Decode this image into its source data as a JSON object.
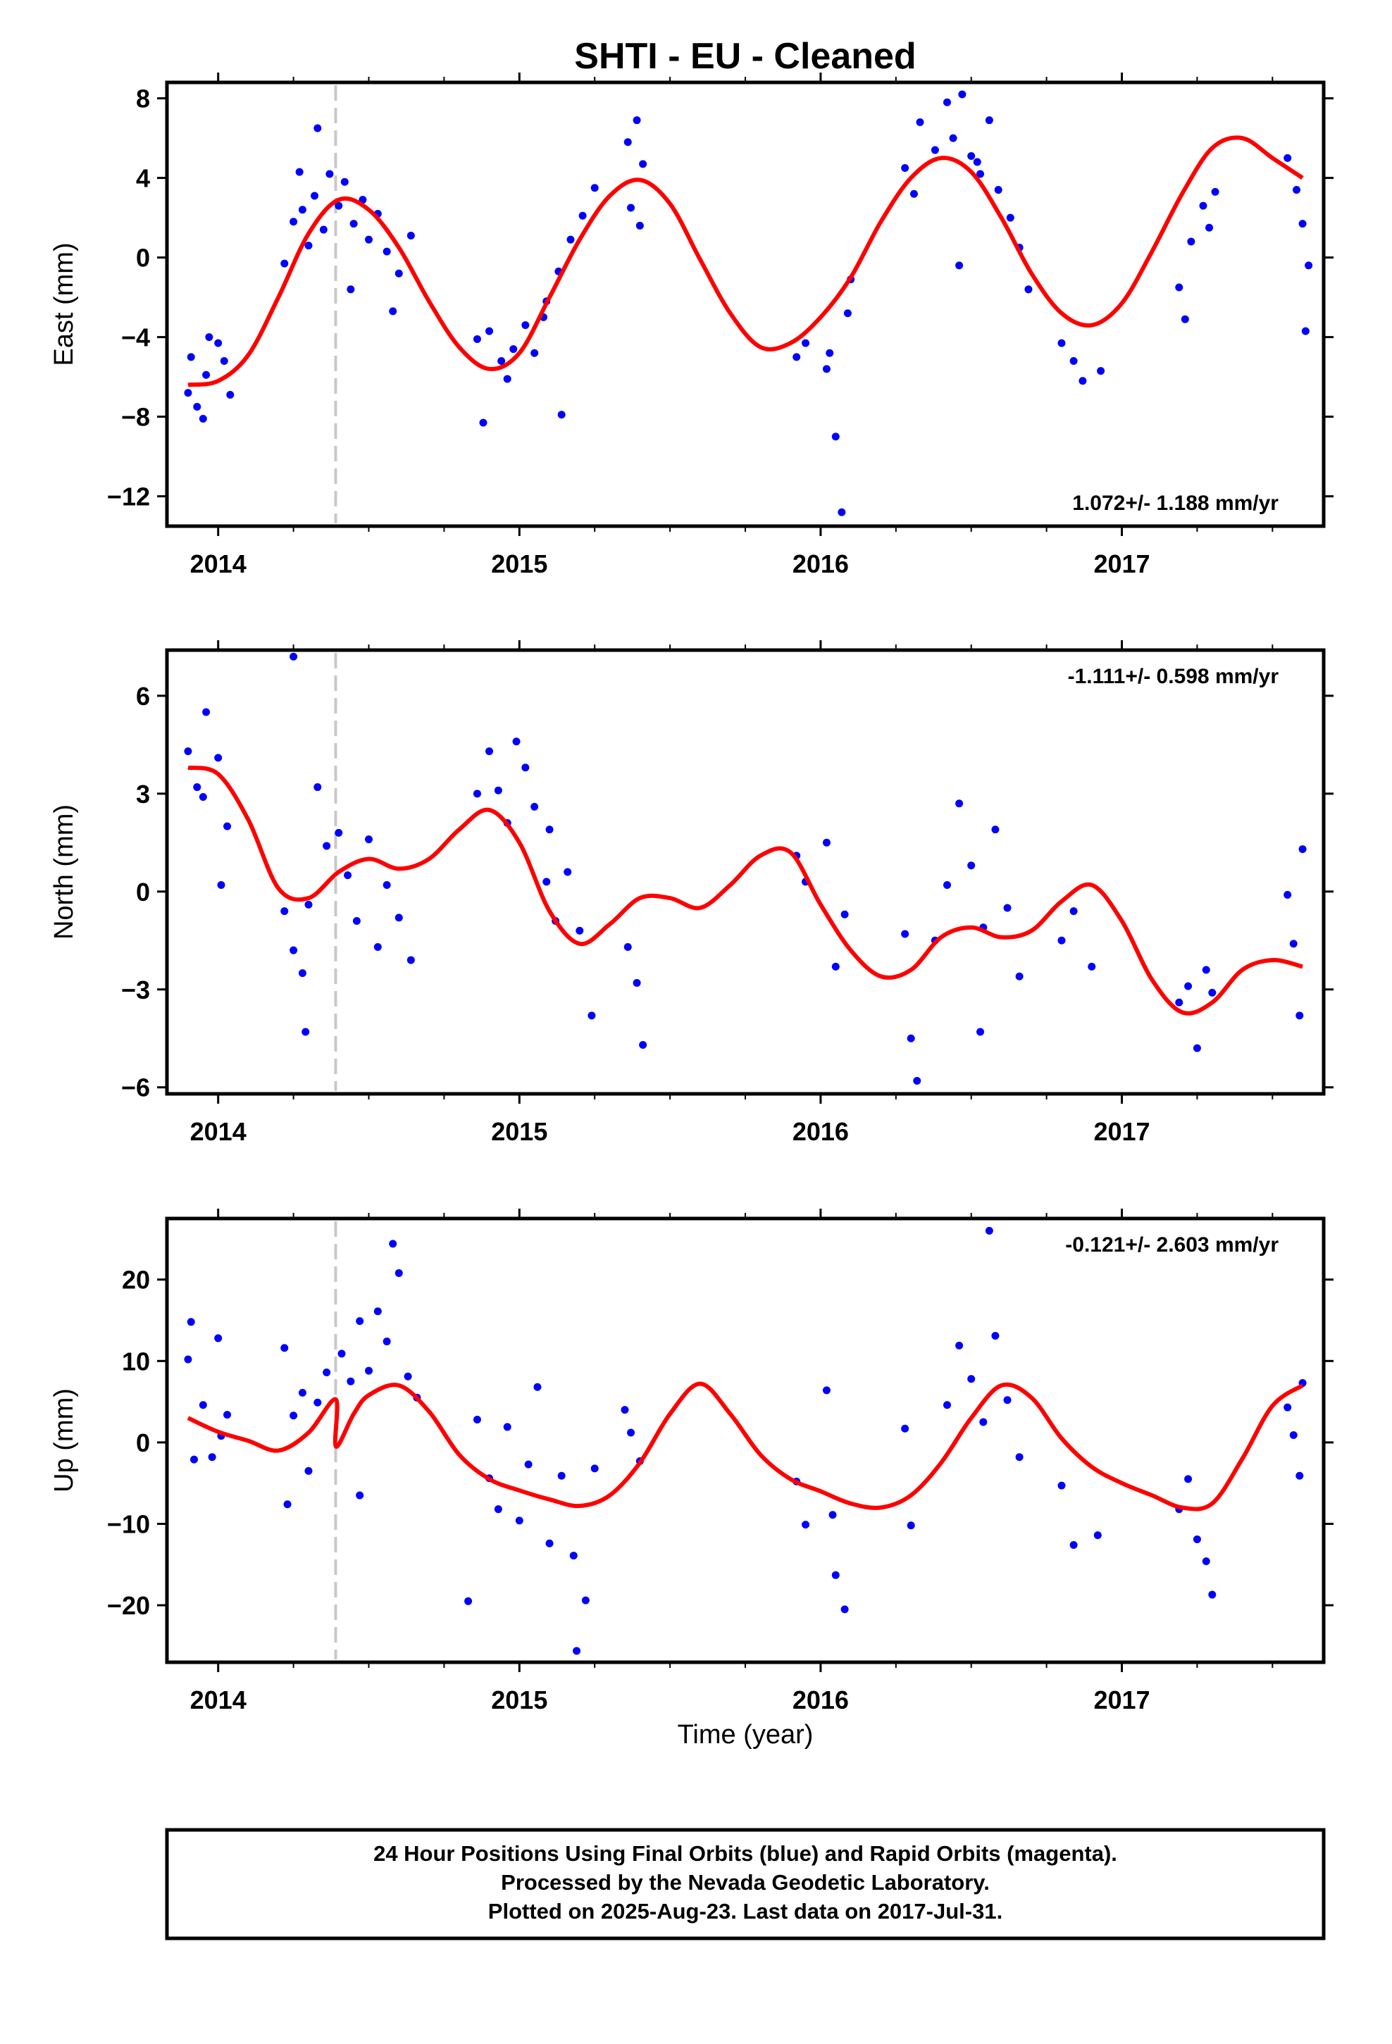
{
  "title": "SHTI  - EU - Cleaned",
  "xlabel": "Time (year)",
  "footer": {
    "lines": [
      "24 Hour Positions Using Final Orbits (blue) and Rapid Orbits (magenta).",
      "Processed by the Nevada Geodetic Laboratory.",
      "Plotted on 2025-Aug-23. Last data on 2017-Jul-31."
    ]
  },
  "colors": {
    "points": "#0000ff",
    "fit": "#ff0000",
    "break_line": "#c8c8c8",
    "frame": "#000000"
  },
  "chart_data": [
    {
      "type": "scatter",
      "name": "east",
      "ylabel": "East (mm)",
      "rate_text": "1.072+/- 1.188 mm/yr",
      "rate_position": "bottom-right",
      "xlim": [
        2013.83,
        2017.67
      ],
      "ylim": [
        -13.5,
        8.8
      ],
      "xticks": [
        2014,
        2015,
        2016,
        2017
      ],
      "yticks": [
        8,
        4,
        0,
        -4,
        -8,
        -12
      ],
      "equipment_break": 2014.39,
      "fit": {
        "x": [
          2013.9,
          2014.0,
          2014.1,
          2014.2,
          2014.3,
          2014.4,
          2014.5,
          2014.6,
          2014.7,
          2014.8,
          2014.9,
          2015.0,
          2015.1,
          2015.2,
          2015.3,
          2015.4,
          2015.5,
          2015.6,
          2015.7,
          2015.8,
          2015.9,
          2016.0,
          2016.1,
          2016.2,
          2016.3,
          2016.4,
          2016.5,
          2016.6,
          2016.7,
          2016.8,
          2016.9,
          2017.0,
          2017.1,
          2017.2,
          2017.3,
          2017.4,
          2017.5,
          2017.6
        ],
        "y": [
          -6.4,
          -6.2,
          -4.9,
          -2.0,
          1.2,
          2.9,
          2.4,
          0.5,
          -2.2,
          -4.5,
          -5.6,
          -4.8,
          -2.0,
          0.9,
          3.1,
          3.9,
          2.7,
          -0.1,
          -2.8,
          -4.5,
          -4.3,
          -3.0,
          -1.0,
          1.8,
          4.0,
          5.0,
          4.3,
          2.0,
          -0.8,
          -2.8,
          -3.4,
          -2.3,
          0.3,
          3.2,
          5.5,
          6.0,
          5.0,
          4.0
        ]
      },
      "series": [
        {
          "name": "Final Orbits",
          "x": [
            2013.9,
            2013.93,
            2013.96,
            2014.0,
            2014.02,
            2013.95,
            2013.91,
            2014.04,
            2013.97,
            2014.22,
            2014.25,
            2014.28,
            2014.3,
            2014.32,
            2014.35,
            2014.37,
            2014.4,
            2014.42,
            2014.45,
            2014.48,
            2014.5,
            2014.53,
            2014.56,
            2014.6,
            2014.64,
            2014.33,
            2014.27,
            2014.44,
            2014.58,
            2014.86,
            2014.9,
            2014.94,
            2014.98,
            2015.02,
            2015.05,
            2015.08,
            2014.88,
            2014.96,
            2015.09,
            2015.13,
            2015.17,
            2015.21,
            2015.25,
            2015.14,
            2015.36,
            2015.39,
            2015.41,
            2015.37,
            2015.4,
            2015.92,
            2015.95,
            2016.02,
            2016.05,
            2016.07,
            2016.09,
            2016.1,
            2016.03,
            2016.28,
            2016.31,
            2016.33,
            2016.38,
            2016.42,
            2016.44,
            2016.47,
            2016.5,
            2016.53,
            2016.56,
            2016.59,
            2016.63,
            2016.66,
            2016.69,
            2016.46,
            2016.52,
            2016.8,
            2016.84,
            2016.87,
            2016.93,
            2017.19,
            2017.21,
            2017.23,
            2017.27,
            2017.29,
            2017.31,
            2017.55,
            2017.58,
            2017.6,
            2017.62,
            2017.61
          ],
          "y": [
            -6.8,
            -7.5,
            -5.9,
            -4.3,
            -5.2,
            -8.1,
            -5.0,
            -6.9,
            -4.0,
            -0.3,
            1.8,
            2.4,
            0.6,
            3.1,
            1.4,
            4.2,
            2.6,
            3.8,
            1.7,
            2.9,
            0.9,
            2.2,
            0.3,
            -0.8,
            1.1,
            6.5,
            4.3,
            -1.6,
            -2.7,
            -4.1,
            -3.7,
            -5.2,
            -4.6,
            -3.4,
            -4.8,
            -3.0,
            -8.3,
            -6.1,
            -2.2,
            -0.7,
            0.9,
            2.1,
            3.5,
            -7.9,
            5.8,
            6.9,
            4.7,
            2.5,
            1.6,
            -5.0,
            -4.3,
            -5.6,
            -9.0,
            -12.8,
            -2.8,
            -1.1,
            -4.8,
            4.5,
            3.2,
            6.8,
            5.4,
            7.8,
            6.0,
            8.2,
            5.1,
            4.2,
            6.9,
            3.4,
            2.0,
            0.5,
            -1.6,
            -0.4,
            4.8,
            -4.3,
            -5.2,
            -6.2,
            -5.7,
            -1.5,
            -3.1,
            0.8,
            2.6,
            1.5,
            3.3,
            5.0,
            3.4,
            1.7,
            -0.4,
            -3.7
          ]
        }
      ]
    },
    {
      "type": "scatter",
      "name": "north",
      "ylabel": "North (mm)",
      "rate_text": "-1.111+/- 0.598 mm/yr",
      "rate_position": "top-right",
      "xlim": [
        2013.83,
        2017.67
      ],
      "ylim": [
        -6.2,
        7.4
      ],
      "xticks": [
        2014,
        2015,
        2016,
        2017
      ],
      "yticks": [
        6,
        3,
        0,
        -3,
        -6
      ],
      "equipment_break": 2014.39,
      "fit": {
        "x": [
          2013.9,
          2014.0,
          2014.1,
          2014.2,
          2014.3,
          2014.4,
          2014.5,
          2014.6,
          2014.7,
          2014.8,
          2014.9,
          2015.0,
          2015.1,
          2015.2,
          2015.3,
          2015.4,
          2015.5,
          2015.6,
          2015.7,
          2015.8,
          2015.9,
          2016.0,
          2016.1,
          2016.2,
          2016.3,
          2016.4,
          2016.5,
          2016.6,
          2016.7,
          2016.8,
          2016.9,
          2017.0,
          2017.1,
          2017.2,
          2017.3,
          2017.4,
          2017.5,
          2017.6
        ],
        "y": [
          3.8,
          3.6,
          2.2,
          0.1,
          -0.2,
          0.6,
          1.0,
          0.7,
          1.0,
          1.9,
          2.5,
          1.5,
          -0.6,
          -1.6,
          -1.0,
          -0.2,
          -0.2,
          -0.5,
          0.2,
          1.1,
          1.2,
          -0.4,
          -1.8,
          -2.6,
          -2.4,
          -1.4,
          -1.1,
          -1.4,
          -1.2,
          -0.3,
          0.2,
          -0.9,
          -2.7,
          -3.7,
          -3.4,
          -2.4,
          -2.1,
          -2.3
        ]
      },
      "series": [
        {
          "name": "Final Orbits",
          "x": [
            2013.9,
            2013.93,
            2013.96,
            2014.0,
            2014.03,
            2013.95,
            2014.01,
            2014.22,
            2014.25,
            2014.28,
            2014.3,
            2014.33,
            2014.36,
            2014.4,
            2014.43,
            2014.46,
            2014.5,
            2014.53,
            2014.56,
            2014.6,
            2014.64,
            2014.29,
            2014.25,
            2014.86,
            2014.9,
            2014.93,
            2014.96,
            2014.99,
            2015.02,
            2015.05,
            2015.09,
            2015.12,
            2015.16,
            2015.2,
            2015.24,
            2015.1,
            2015.36,
            2015.39,
            2015.41,
            2015.92,
            2015.95,
            2016.02,
            2016.05,
            2016.08,
            2016.28,
            2016.3,
            2016.32,
            2016.38,
            2016.42,
            2016.46,
            2016.5,
            2016.54,
            2016.58,
            2016.62,
            2016.66,
            2016.53,
            2016.8,
            2016.84,
            2016.9,
            2017.19,
            2017.22,
            2017.25,
            2017.28,
            2017.3,
            2017.55,
            2017.57,
            2017.59,
            2017.6
          ],
          "y": [
            4.3,
            3.2,
            5.5,
            4.1,
            2.0,
            2.9,
            0.2,
            -0.6,
            -1.8,
            -2.5,
            -0.4,
            3.2,
            1.4,
            1.8,
            0.5,
            -0.9,
            1.6,
            -1.7,
            0.2,
            -0.8,
            -2.1,
            -4.3,
            7.2,
            3.0,
            4.3,
            3.1,
            2.1,
            4.6,
            3.8,
            2.6,
            0.3,
            -0.9,
            0.6,
            -1.2,
            -3.8,
            1.9,
            -1.7,
            -2.8,
            -4.7,
            1.1,
            0.3,
            1.5,
            -2.3,
            -0.7,
            -1.3,
            -4.5,
            -5.8,
            -1.5,
            0.2,
            2.7,
            0.8,
            -1.1,
            1.9,
            -0.5,
            -2.6,
            -4.3,
            -1.5,
            -0.6,
            -2.3,
            -3.4,
            -2.9,
            -4.8,
            -2.4,
            -3.1,
            -0.1,
            -1.6,
            -3.8,
            1.3
          ]
        }
      ]
    },
    {
      "type": "scatter",
      "name": "up",
      "ylabel": "Up (mm)",
      "rate_text": "-0.121+/- 2.603 mm/yr",
      "rate_position": "top-right",
      "xlim": [
        2013.83,
        2017.67
      ],
      "ylim": [
        -27,
        27.5
      ],
      "xticks": [
        2014,
        2015,
        2016,
        2017
      ],
      "yticks": [
        20,
        10,
        0,
        -10,
        -20
      ],
      "xlabel": "Time (year)",
      "equipment_break": 2014.39,
      "fit": {
        "x": [
          2013.9,
          2014.0,
          2014.1,
          2014.2,
          2014.3,
          2014.39,
          2014.391,
          2014.45,
          2014.5,
          2014.6,
          2014.7,
          2014.8,
          2014.9,
          2015.0,
          2015.1,
          2015.2,
          2015.3,
          2015.4,
          2015.5,
          2015.6,
          2015.7,
          2015.8,
          2015.9,
          2016.0,
          2016.1,
          2016.2,
          2016.3,
          2016.4,
          2016.5,
          2016.6,
          2016.7,
          2016.8,
          2016.9,
          2017.0,
          2017.1,
          2017.2,
          2017.3,
          2017.4,
          2017.5,
          2017.6
        ],
        "y": [
          3.0,
          1.3,
          0.2,
          -1.0,
          1.2,
          5.3,
          -0.5,
          3.5,
          5.8,
          7.0,
          3.8,
          -1.5,
          -4.5,
          -5.9,
          -7.0,
          -7.8,
          -6.5,
          -2.5,
          3.5,
          7.2,
          3.5,
          -1.5,
          -4.5,
          -6.0,
          -7.5,
          -8.0,
          -6.5,
          -2.5,
          3.0,
          7.0,
          5.5,
          0.5,
          -3.0,
          -5.0,
          -6.5,
          -8.0,
          -7.5,
          -2.0,
          4.5,
          7.0
        ]
      },
      "series": [
        {
          "name": "Final Orbits",
          "x": [
            2013.9,
            2013.92,
            2013.95,
            2013.98,
            2014.01,
            2014.03,
            2013.91,
            2014.0,
            2014.22,
            2014.25,
            2014.28,
            2014.3,
            2014.33,
            2014.36,
            2014.23,
            2014.41,
            2014.44,
            2014.47,
            2014.5,
            2014.53,
            2014.56,
            2014.6,
            2014.63,
            2014.66,
            2014.58,
            2014.47,
            2014.86,
            2014.9,
            2014.93,
            2014.96,
            2015.0,
            2015.03,
            2015.06,
            2015.1,
            2015.14,
            2015.18,
            2015.22,
            2015.25,
            2014.83,
            2015.19,
            2015.37,
            2015.4,
            2015.35,
            2015.92,
            2015.95,
            2016.02,
            2016.05,
            2016.08,
            2016.04,
            2016.28,
            2016.3,
            2016.42,
            2016.46,
            2016.5,
            2016.54,
            2016.58,
            2016.62,
            2016.66,
            2016.56,
            2016.8,
            2016.84,
            2016.92,
            2017.19,
            2017.22,
            2017.25,
            2017.28,
            2017.3,
            2017.55,
            2017.57,
            2017.59,
            2017.6
          ],
          "y": [
            10.2,
            -2.1,
            4.6,
            -1.8,
            0.8,
            3.4,
            14.8,
            12.8,
            11.6,
            3.3,
            6.1,
            -3.5,
            4.9,
            8.6,
            -7.6,
            10.9,
            7.5,
            14.9,
            8.8,
            16.1,
            12.4,
            20.8,
            8.1,
            5.5,
            24.4,
            -6.5,
            2.8,
            -4.4,
            -8.2,
            1.9,
            -9.6,
            -2.7,
            6.8,
            -12.4,
            -4.1,
            -13.9,
            -19.4,
            -3.2,
            -19.5,
            -25.6,
            1.2,
            -2.3,
            4.0,
            -4.8,
            -10.1,
            6.4,
            -16.3,
            -20.5,
            -8.9,
            1.7,
            -10.2,
            4.6,
            11.9,
            7.8,
            2.5,
            13.1,
            5.2,
            -1.8,
            26.0,
            -5.3,
            -12.6,
            -11.4,
            -8.2,
            -4.5,
            -11.9,
            -14.6,
            -18.7,
            4.3,
            0.9,
            -4.1,
            7.3
          ]
        }
      ]
    }
  ]
}
